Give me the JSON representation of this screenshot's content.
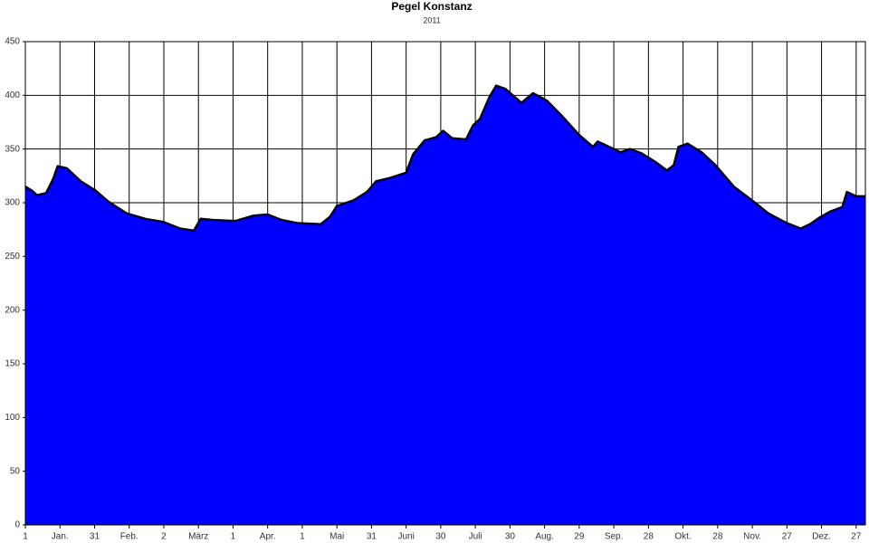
{
  "chart_data": {
    "type": "area",
    "title": "Pegel Konstanz",
    "subtitle": "2011",
    "x": [
      0,
      3,
      5,
      9,
      12,
      14,
      18,
      24,
      30,
      36,
      44,
      52,
      60,
      67,
      73,
      76,
      81,
      91,
      99,
      105,
      111,
      118,
      128,
      132,
      135,
      142,
      148,
      152,
      158,
      165,
      168,
      173,
      178,
      181,
      185,
      191,
      194,
      197,
      201,
      204,
      208,
      215,
      220,
      226,
      232,
      240,
      246,
      248,
      252,
      258,
      262,
      267,
      273,
      278,
      281,
      283,
      287,
      293,
      299,
      307,
      315,
      322,
      330,
      336,
      340,
      344,
      349,
      354,
      356,
      360,
      364
    ],
    "values": [
      315,
      311,
      307,
      309,
      322,
      334,
      332,
      320,
      312,
      301,
      290,
      285,
      282,
      276,
      274,
      285,
      284,
      283,
      288,
      289,
      284,
      281,
      280,
      287,
      297,
      302,
      310,
      320,
      323,
      328,
      345,
      358,
      361,
      367,
      360,
      359,
      372,
      378,
      398,
      409,
      406,
      393,
      402,
      395,
      382,
      363,
      352,
      357,
      353,
      347,
      350,
      346,
      338,
      330,
      335,
      352,
      355,
      347,
      335,
      315,
      302,
      290,
      281,
      276,
      280,
      286,
      292,
      296,
      310,
      306,
      306
    ],
    "color": "#0000ff",
    "line_color": "#000000",
    "xlim": [
      0,
      364
    ],
    "ylim": [
      0,
      450
    ],
    "yticks": [
      0,
      50,
      100,
      150,
      200,
      250,
      300,
      350,
      400,
      450
    ],
    "xticks": [
      {
        "value": 0,
        "label": "1"
      },
      {
        "value": 15,
        "label": "Jan."
      },
      {
        "value": 30,
        "label": "31"
      },
      {
        "value": 45,
        "label": "Feb."
      },
      {
        "value": 60,
        "label": "2"
      },
      {
        "value": 75,
        "label": "März"
      },
      {
        "value": 90,
        "label": "1"
      },
      {
        "value": 105,
        "label": "Apr."
      },
      {
        "value": 120,
        "label": "1"
      },
      {
        "value": 135,
        "label": "Mai"
      },
      {
        "value": 150,
        "label": "31"
      },
      {
        "value": 165,
        "label": "Juni"
      },
      {
        "value": 180,
        "label": "30"
      },
      {
        "value": 195,
        "label": "Juli"
      },
      {
        "value": 210,
        "label": "30"
      },
      {
        "value": 225,
        "label": "Aug."
      },
      {
        "value": 240,
        "label": "29"
      },
      {
        "value": 255,
        "label": "Sep."
      },
      {
        "value": 270,
        "label": "28"
      },
      {
        "value": 285,
        "label": "Okt."
      },
      {
        "value": 300,
        "label": "28"
      },
      {
        "value": 315,
        "label": "Nov."
      },
      {
        "value": 330,
        "label": "27"
      },
      {
        "value": 345,
        "label": "Dez."
      },
      {
        "value": 360,
        "label": "27"
      }
    ],
    "grid": true
  }
}
